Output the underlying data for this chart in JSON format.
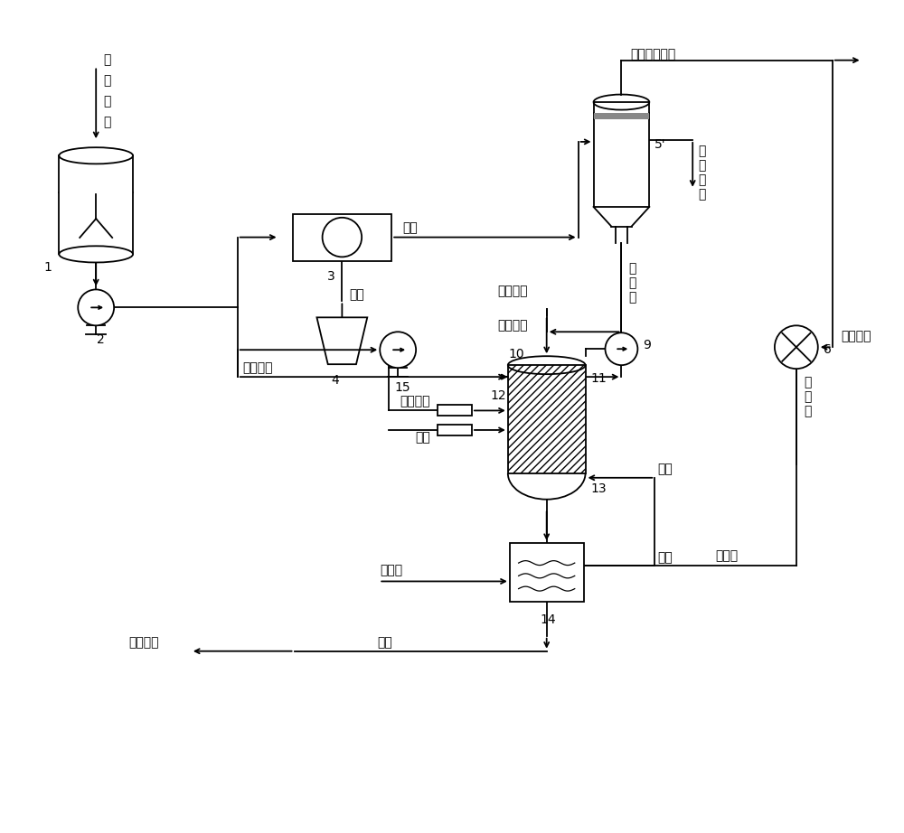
{
  "bg_color": "#ffffff",
  "line_color": "#000000",
  "figsize": [
    10.0,
    9.22
  ],
  "dpi": 100,
  "font_size": 10,
  "lw": 1.3,
  "labels": {
    "desulfur_waste": "脱硫废液",
    "label1": "1",
    "label2": "2",
    "label3": "3",
    "label4": "4",
    "label5": "5'",
    "label6": "6",
    "label9": "9",
    "label10": "10",
    "label11": "11",
    "label12": "12",
    "label13": "13",
    "label14": "14",
    "label15": "15",
    "filtrate": "滤液",
    "filter_residue": "滤渣",
    "hot_conc": "热浓缩液",
    "pyrolysis_steam": "热解气及蒸汽",
    "conc_waste_liquid": "浓\n缩\n废\n液",
    "pyrolysis_gas": "热\n解\n气",
    "to_desulfur": "去往脱硫",
    "condensate_liquid": "冷\n凝\n液",
    "coke_oven_gas": "焦炉煤气",
    "oxygen": "氧气",
    "steam": "蒸汽",
    "condensed_water": "冷凝水",
    "fresh_water": "新鲜水",
    "alkali_liquid": "碱液",
    "provide_alkali": "提供碱源"
  }
}
